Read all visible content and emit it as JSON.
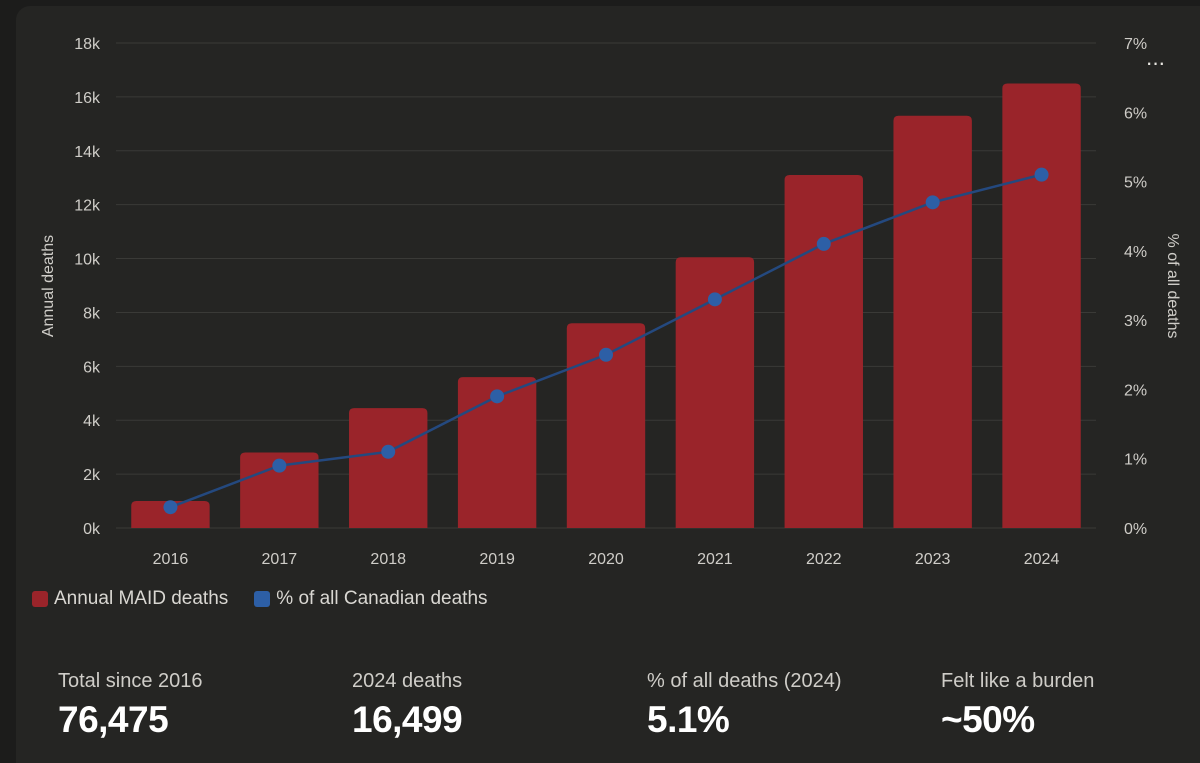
{
  "colors": {
    "bar": "#9a242a",
    "line": "#24497f",
    "dot": "#2d5fa6",
    "grid": "#3a3a37",
    "tick": "#cfcdc8"
  },
  "menu": {
    "icon": "more-horizontal-icon",
    "glyph": "···"
  },
  "legend": {
    "bars_label": "Annual MAID deaths",
    "line_label": "% of all Canadian deaths"
  },
  "stats": [
    {
      "label": "Total since 2016",
      "value": "76,475"
    },
    {
      "label": "2024 deaths",
      "value": "16,499"
    },
    {
      "label": "% of all deaths (2024)",
      "value": "5.1%"
    },
    {
      "label": "Felt like a burden",
      "value": "~50%"
    }
  ],
  "chart_data": {
    "type": "bar",
    "categories": [
      "2016",
      "2017",
      "2018",
      "2019",
      "2020",
      "2021",
      "2022",
      "2023",
      "2024"
    ],
    "series": [
      {
        "name": "Annual MAID deaths",
        "type": "bar",
        "axis": "left",
        "values": [
          1000,
          2800,
          4450,
          5600,
          7600,
          10050,
          13100,
          15300,
          16499
        ]
      },
      {
        "name": "% of all Canadian deaths",
        "type": "line",
        "axis": "right",
        "values": [
          0.3,
          0.9,
          1.1,
          1.9,
          2.5,
          3.3,
          4.1,
          4.7,
          5.1
        ]
      }
    ],
    "ylabel": "Annual deaths",
    "y2label": "% of all deaths",
    "ylim": [
      0,
      18000
    ],
    "y2lim": [
      0,
      7
    ],
    "yticks": [
      "0k",
      "2k",
      "4k",
      "6k",
      "8k",
      "10k",
      "12k",
      "14k",
      "16k",
      "18k"
    ],
    "y2ticks": [
      "0%",
      "1%",
      "2%",
      "3%",
      "4%",
      "5%",
      "6%",
      "7%"
    ],
    "grid": true,
    "legend_position": "bottom-left"
  }
}
